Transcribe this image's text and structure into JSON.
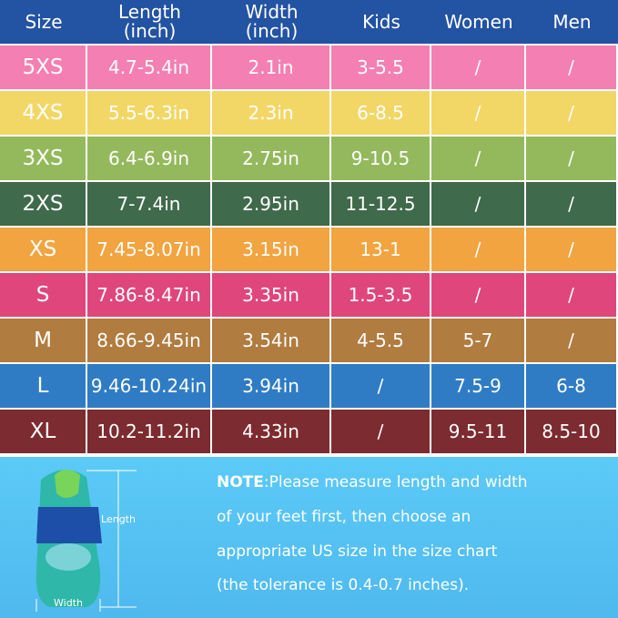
{
  "table": {
    "header": [
      "Size",
      "Length\n(inch)",
      "Width\n(inch)",
      "Kids",
      "Women",
      "Men"
    ],
    "rows": [
      [
        "5XS",
        "4.7-5.4in",
        "2.1in",
        "3-5.5",
        "/",
        "/"
      ],
      [
        "4XS",
        "5.5-6.3in",
        "2.3in",
        "6-8.5",
        "/",
        "/"
      ],
      [
        "3XS",
        "6.4-6.9in",
        "2.75in",
        "9-10.5",
        "/",
        "/"
      ],
      [
        "2XS",
        "7-7.4in",
        "2.95in",
        "11-12.5",
        "/",
        "/"
      ],
      [
        "XS",
        "7.45-8.07in",
        "3.15in",
        "13-1",
        "/",
        "/"
      ],
      [
        "S",
        "7.86-8.47in",
        "3.35in",
        "1.5-3.5",
        "/",
        "/"
      ],
      [
        "M",
        "8.66-9.45in",
        "3.54in",
        "4-5.5",
        "5-7",
        "/"
      ],
      [
        "L",
        "9.46-10.24in",
        "3.94in",
        "/",
        "7.5-9",
        "6-8"
      ],
      [
        "XL",
        "10.2-11.2in",
        "4.33in",
        "/",
        "9.5-11",
        "8.5-10"
      ]
    ],
    "row_colors": [
      "#f47fb2",
      "#f3d766",
      "#94b95c",
      "#3f6a4b",
      "#f2a440",
      "#df467b",
      "#b07c3f",
      "#2f7cc5",
      "#7c2b30"
    ],
    "header_color": "#2353a3"
  },
  "diagram": {
    "length_label": "Length",
    "width_label": "Width"
  },
  "note": {
    "label": "NOTE",
    "lines": [
      ":Please measure length and width",
      "of your feet first, then choose an",
      "appropriate US size in the size chart",
      "(the tolerance is 0.4-0.7 inches)."
    ]
  }
}
